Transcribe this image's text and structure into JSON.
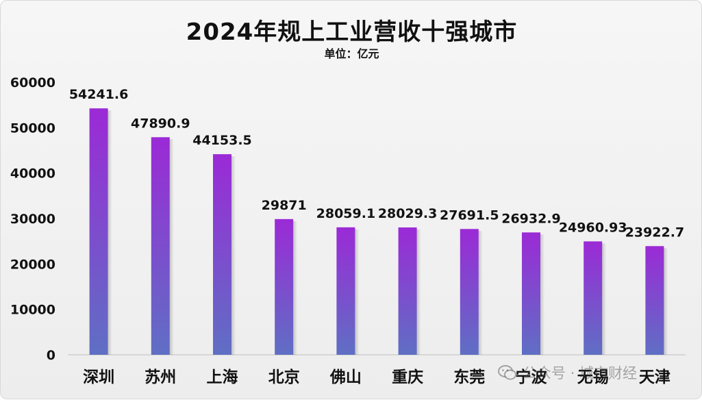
{
  "chart_data": {
    "type": "bar",
    "title": "2024年规上工业营收十强城市",
    "subtitle": "单位：亿元",
    "categories": [
      "深圳",
      "苏州",
      "上海",
      "北京",
      "佛山",
      "重庆",
      "东莞",
      "宁波",
      "无锡",
      "天津"
    ],
    "values": [
      54241.6,
      47890.9,
      44153.5,
      29871,
      28059.1,
      28029.3,
      27691.5,
      26932.9,
      24960.93,
      23922.7
    ],
    "value_labels": [
      "54241.6",
      "47890.9",
      "44153.5",
      "29871",
      "28059.1",
      "28029.3",
      "27691.5",
      "26932.9",
      "24960.93",
      "23922.7"
    ],
    "ylim": [
      0,
      60000
    ],
    "yticks": [
      "0",
      "10000",
      "20000",
      "30000",
      "40000",
      "50000",
      "60000"
    ],
    "grid": false,
    "bar_gradient": {
      "top": "#9b2ad6",
      "bottom": "#5f6fc4"
    }
  },
  "watermark": {
    "text": "公众号 · 城市财经",
    "icon": "wechat-icon"
  }
}
